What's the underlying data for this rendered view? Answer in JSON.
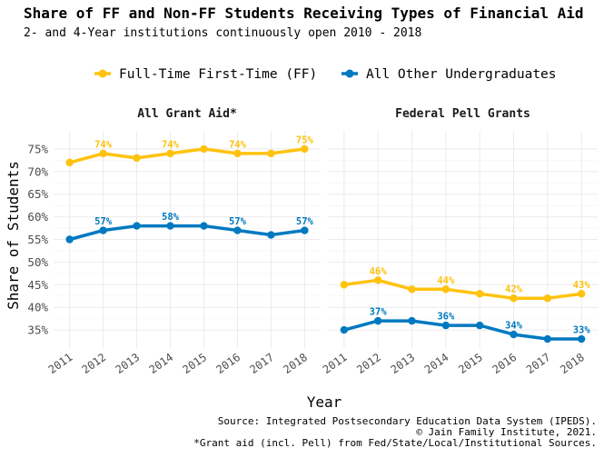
{
  "title": "Share of FF and Non-FF Students Receiving Types of Financial Aid",
  "subtitle": "2- and 4-Year institutions continuously open 2010 - 2018",
  "colors": {
    "ff": "#FFC20E",
    "other": "#0079C1",
    "grid": "#EBEBEB",
    "text": "#4D4D4D"
  },
  "legend": [
    {
      "key": "ff",
      "label": "Full-Time First-Time (FF)"
    },
    {
      "key": "other",
      "label": "All Other Undergraduates"
    }
  ],
  "axes": {
    "ylabel": "Share of Students",
    "xlabel": "Year"
  },
  "caption": [
    "Source: Integrated Postsecondary Education Data System (IPEDS).",
    "© Jain Family Institute, 2021.",
    "*Grant aid (incl. Pell) from Fed/State/Local/Institutional Sources."
  ],
  "chart_data": {
    "type": "line",
    "title": "Share of FF and Non-FF Students Receiving Types of Financial Aid",
    "subtitle": "2- and 4-Year institutions continuously open 2010 - 2018",
    "xlabel": "Year",
    "ylabel": "Share of Students",
    "x": [
      2011,
      2012,
      2013,
      2014,
      2015,
      2016,
      2017,
      2018
    ],
    "ylim": [
      31,
      79
    ],
    "yticks": [
      35,
      40,
      45,
      50,
      55,
      60,
      65,
      70,
      75
    ],
    "ytick_labels": [
      "35%",
      "40%",
      "45%",
      "50%",
      "55%",
      "60%",
      "65%",
      "70%",
      "75%"
    ],
    "grid": true,
    "legend_position": "top",
    "panels": [
      {
        "title": "All Grant Aid*",
        "series": [
          {
            "name": "Full-Time First-Time (FF)",
            "key": "ff",
            "values": [
              72,
              74,
              73,
              74,
              75,
              74,
              74,
              75
            ],
            "data_labels": [
              null,
              "74%",
              null,
              "74%",
              null,
              "74%",
              null,
              "75%"
            ]
          },
          {
            "name": "All Other Undergraduates",
            "key": "other",
            "values": [
              55,
              57,
              58,
              58,
              58,
              57,
              56,
              57
            ],
            "data_labels": [
              null,
              "57%",
              null,
              "58%",
              null,
              "57%",
              null,
              "57%"
            ]
          }
        ]
      },
      {
        "title": "Federal Pell Grants",
        "series": [
          {
            "name": "Full-Time First-Time (FF)",
            "key": "ff",
            "values": [
              45,
              46,
              44,
              44,
              43,
              42,
              42,
              43
            ],
            "data_labels": [
              null,
              "46%",
              null,
              "44%",
              null,
              "42%",
              null,
              "43%"
            ]
          },
          {
            "name": "All Other Undergraduates",
            "key": "other",
            "values": [
              35,
              37,
              37,
              36,
              36,
              34,
              33,
              33
            ],
            "data_labels": [
              null,
              "37%",
              null,
              "36%",
              null,
              "34%",
              null,
              "33%"
            ]
          }
        ]
      }
    ]
  }
}
